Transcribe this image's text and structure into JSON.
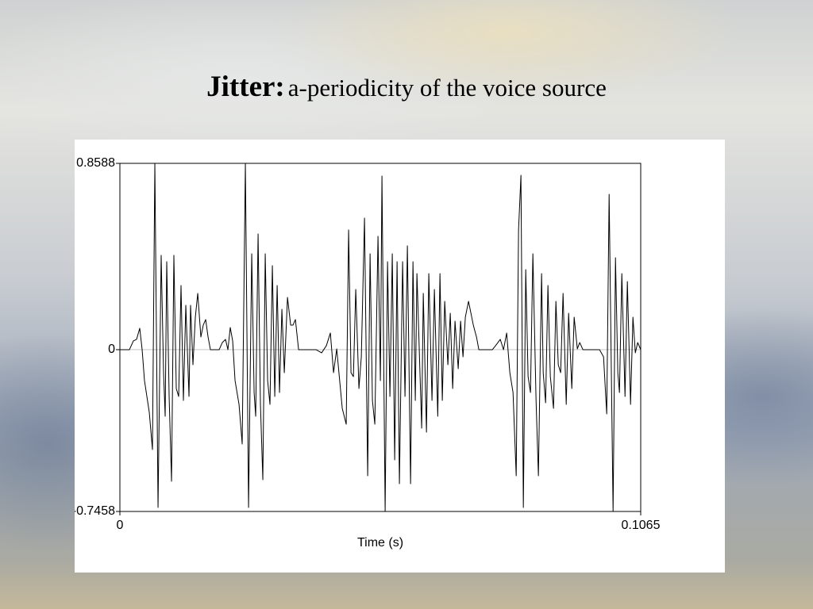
{
  "chart_data": {
    "type": "line",
    "title_lead": "Jitter:",
    "title": "a-periodicity of the voice source",
    "x_label": "Time (s)",
    "color": "#000000",
    "grid": true,
    "xlim": [
      0,
      0.1065
    ],
    "xticks": [
      0,
      0.1065
    ],
    "ylim": [
      -0.7458,
      0.8588
    ],
    "yticks": [
      -0.7458,
      0,
      0.8588
    ],
    "x": [
      0,
      0.00195,
      0.00276,
      0.00341,
      0.00406,
      0.00455,
      0.00503,
      0.00601,
      0.00666,
      0.00715,
      0.0078,
      0.00844,
      0.00893,
      0.00926,
      0.00958,
      0.01007,
      0.01056,
      0.01104,
      0.01153,
      0.01202,
      0.0125,
      0.01299,
      0.01348,
      0.01413,
      0.01445,
      0.01494,
      0.01543,
      0.01592,
      0.01656,
      0.01705,
      0.01754,
      0.01803,
      0.01851,
      0.0203,
      0.02095,
      0.0216,
      0.02209,
      0.02257,
      0.02306,
      0.02355,
      0.02436,
      0.02501,
      0.02566,
      0.02631,
      0.02696,
      0.02745,
      0.02777,
      0.02826,
      0.02874,
      0.02923,
      0.02972,
      0.03021,
      0.03069,
      0.03118,
      0.03167,
      0.03216,
      0.03264,
      0.03313,
      0.03362,
      0.03427,
      0.03492,
      0.0354,
      0.03589,
      0.03654,
      0.04011,
      0.04125,
      0.04222,
      0.04304,
      0.04369,
      0.04434,
      0.04547,
      0.04628,
      0.04677,
      0.04726,
      0.04775,
      0.04823,
      0.04888,
      0.04937,
      0.05002,
      0.05067,
      0.05116,
      0.05164,
      0.05213,
      0.05278,
      0.05327,
      0.05359,
      0.05424,
      0.05473,
      0.05522,
      0.0557,
      0.05619,
      0.05668,
      0.05716,
      0.05781,
      0.0583,
      0.05879,
      0.05944,
      0.05993,
      0.06041,
      0.06074,
      0.06171,
      0.06204,
      0.06269,
      0.06317,
      0.06382,
      0.06431,
      0.065,
      0.06545,
      0.06593,
      0.06642,
      0.06707,
      0.06756,
      0.06805,
      0.06853,
      0.06918,
      0.06967,
      0.07016,
      0.07064,
      0.07129,
      0.07227,
      0.07292,
      0.0734,
      0.07617,
      0.07682,
      0.07779,
      0.07844,
      0.07909,
      0.07974,
      0.08039,
      0.08104,
      0.08152,
      0.08201,
      0.0825,
      0.08299,
      0.08347,
      0.08396,
      0.08445,
      0.0851,
      0.08558,
      0.08623,
      0.08656,
      0.08705,
      0.08753,
      0.08802,
      0.08867,
      0.08916,
      0.08964,
      0.09013,
      0.09062,
      0.09127,
      0.09176,
      0.09241,
      0.09289,
      0.09354,
      0.09403,
      0.09468,
      0.09809,
      0.0989,
      0.09955,
      0.10004,
      0.10085,
      0.10134,
      0.10182,
      0.10215,
      0.10264,
      0.10329,
      0.10377,
      0.10442,
      0.10491,
      0.1054,
      0.10588,
      0.1065
    ],
    "values": [
      0,
      0,
      0.0402,
      0.0475,
      0.0987,
      0,
      -0.1425,
      -0.2887,
      -0.4605,
      0.8588,
      -0.7273,
      0.4349,
      -0.106,
      -0.307,
      0.4057,
      -0.2156,
      -0.6067,
      0.4349,
      -0.1791,
      -0.2156,
      0.2961,
      -0.2339,
      0.2047,
      -0.2156,
      0.2047,
      -0.0694,
      0.1499,
      0.2595,
      0.0585,
      0.1133,
      0.1389,
      0.0585,
      0,
      0,
      0.0329,
      0.0475,
      0,
      0.1023,
      0.0402,
      -0.1425,
      -0.2522,
      -0.4349,
      0.8588,
      -0.7273,
      0.4423,
      -0.1974,
      -0.307,
      0.5336,
      -0.2522,
      -0.5994,
      0.4423,
      -0.1425,
      -0.2522,
      0.3874,
      -0.2156,
      0.2961,
      -0.1974,
      0.1864,
      -0.106,
      0.2412,
      0.1133,
      0.1133,
      0.1389,
      0,
      0,
      -0.0146,
      0.0183,
      0.0768,
      -0.106,
      0.0037,
      -0.2705,
      -0.3436,
      0.5519,
      -0.106,
      -0.1243,
      0.2778,
      -0.1791,
      -0.0329,
      0.6067,
      -0.5811,
      0.4423,
      -0.2339,
      -0.3436,
      0.5227,
      -0.1425,
      0.8004,
      -0.7458,
      0.4057,
      -0.2156,
      0.4423,
      -0.508,
      0.4057,
      -0.6177,
      0.4057,
      -0.2156,
      0.4788,
      -0.6177,
      0.4057,
      -0.2339,
      0.3509,
      -0.3618,
      0.2595,
      -0.3801,
      0.3509,
      -0.2339,
      0.2778,
      -0.307,
      0.3509,
      -0.2339,
      0.223,
      -0.0694,
      0.1681,
      -0.1791,
      0.1316,
      -0.0877,
      0.1316,
      -0.0329,
      0.1499,
      0.223,
      0.1133,
      0.0585,
      0,
      0,
      0.0183,
      0.0475,
      0,
      0.0768,
      -0.106,
      -0.1974,
      -0.5811,
      0.5519,
      0.8041,
      -0.7273,
      0.3692,
      -0.1243,
      -0.1974,
      0.4423,
      -0.2339,
      -0.5811,
      0.3509,
      -0.106,
      -0.2449,
      0.2961,
      -0.1243,
      -0.2705,
      0.223,
      -0.0694,
      -0.106,
      0.2595,
      -0.2522,
      0.1681,
      -0.1791,
      0.1499,
      0.0037,
      0.0329,
      0,
      0,
      -0.0329,
      -0.2961,
      0.7164,
      -0.7458,
      0.424,
      -0.106,
      -0.1974,
      0.3509,
      -0.2156,
      0.3143,
      -0.2522,
      0.1499,
      -0.0146,
      0.0329,
      0
    ]
  }
}
